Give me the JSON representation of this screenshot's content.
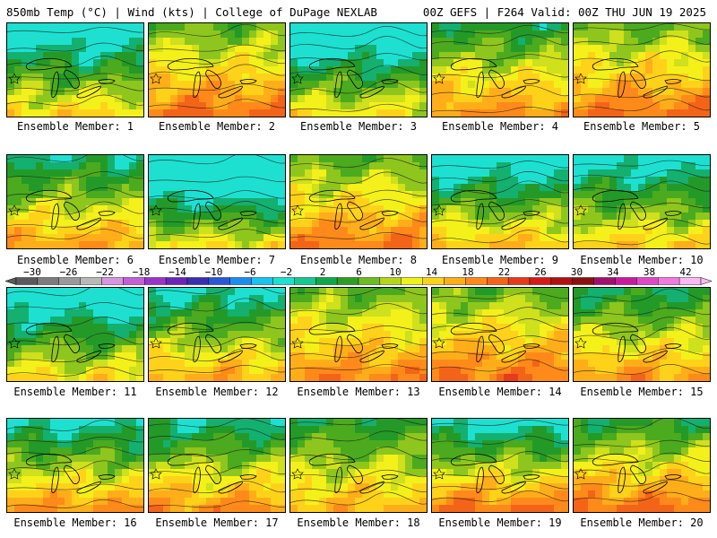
{
  "header": {
    "left": "850mb Temp (°C) | Wind (kts) | College of DuPage NEXLAB",
    "right": "00Z GEFS | F264 Valid: 00Z THU JUN 19 2025"
  },
  "panels": [
    {
      "label": "Ensemble Member: 1",
      "warmth": 0.35,
      "north_cool": 0.5
    },
    {
      "label": "Ensemble Member: 2",
      "warmth": 0.72,
      "north_cool": 0.2
    },
    {
      "label": "Ensemble Member: 3",
      "warmth": 0.28,
      "north_cool": 0.55
    },
    {
      "label": "Ensemble Member: 4",
      "warmth": 0.62,
      "north_cool": 0.3
    },
    {
      "label": "Ensemble Member: 5",
      "warmth": 0.7,
      "north_cool": 0.15
    },
    {
      "label": "Ensemble Member: 6",
      "warmth": 0.55,
      "north_cool": 0.35
    },
    {
      "label": "Ensemble Member: 7",
      "warmth": 0.3,
      "north_cool": 0.85
    },
    {
      "label": "Ensemble Member: 8",
      "warmth": 0.68,
      "north_cool": 0.15
    },
    {
      "label": "Ensemble Member: 9",
      "warmth": 0.45,
      "north_cool": 0.55
    },
    {
      "label": "Ensemble Member: 10",
      "warmth": 0.38,
      "north_cool": 0.4
    },
    {
      "label": "Ensemble Member: 11",
      "warmth": 0.3,
      "north_cool": 0.45
    },
    {
      "label": "Ensemble Member: 12",
      "warmth": 0.5,
      "north_cool": 0.4
    },
    {
      "label": "Ensemble Member: 13",
      "warmth": 0.65,
      "north_cool": 0.1
    },
    {
      "label": "Ensemble Member: 14",
      "warmth": 0.7,
      "north_cool": 0.15
    },
    {
      "label": "Ensemble Member: 15",
      "warmth": 0.58,
      "north_cool": 0.3
    },
    {
      "label": "Ensemble Member: 16",
      "warmth": 0.62,
      "north_cool": 0.55
    },
    {
      "label": "Ensemble Member: 17",
      "warmth": 0.62,
      "north_cool": 0.45
    },
    {
      "label": "Ensemble Member: 18",
      "warmth": 0.45,
      "north_cool": 0.1
    },
    {
      "label": "Ensemble Member: 19",
      "warmth": 0.75,
      "north_cool": 0.7
    },
    {
      "label": "Ensemble Member: 20",
      "warmth": 0.75,
      "north_cool": 0.4
    }
  ],
  "colorbar": {
    "ticks": [
      "−30",
      "−26",
      "−22",
      "−18",
      "−14",
      "−10",
      "−6",
      "−2",
      "2",
      "6",
      "10",
      "14",
      "18",
      "22",
      "26",
      "30",
      "34",
      "38",
      "42"
    ],
    "colors": [
      "#5a5a5a",
      "#7c7c7c",
      "#9a9a9a",
      "#b8b8b8",
      "#d796e0",
      "#c460d6",
      "#9b33c8",
      "#6b24b8",
      "#3a2eb0",
      "#2a56d8",
      "#1c8cf0",
      "#19c2f0",
      "#1ee0d0",
      "#14c890",
      "#0fa848",
      "#2e9e22",
      "#6cbc22",
      "#b6d41e",
      "#eef21a",
      "#ffd21a",
      "#ffae1a",
      "#ff8a1a",
      "#f46418",
      "#e83a1a",
      "#d41a1a",
      "#b01010",
      "#8a1010",
      "#a0106e",
      "#c81aa0",
      "#e048c8",
      "#f07ae0",
      "#fab8f4"
    ]
  }
}
